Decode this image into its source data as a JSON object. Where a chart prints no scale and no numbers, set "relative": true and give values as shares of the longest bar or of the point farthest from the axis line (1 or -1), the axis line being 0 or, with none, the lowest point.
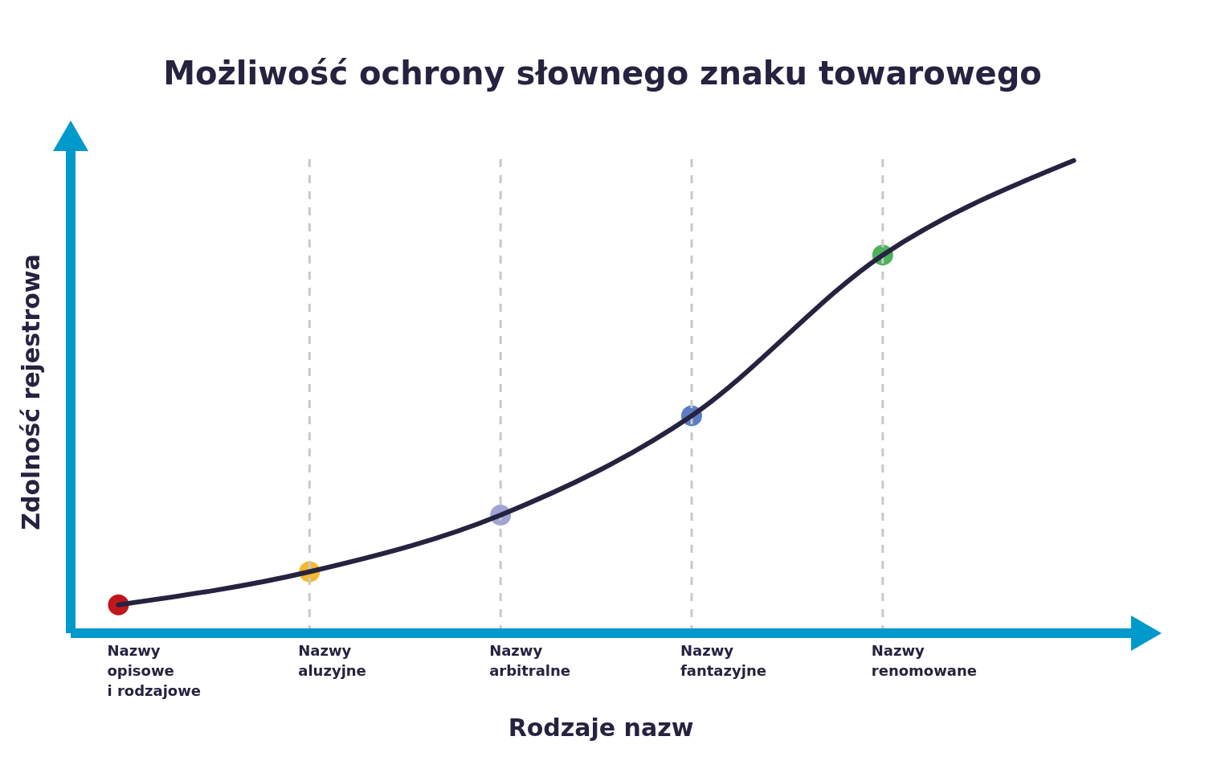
{
  "chart_data": {
    "type": "line",
    "title": "Możliwość ochrony słownego znaku towarowego",
    "xlabel": "Rodzaje nazw",
    "ylabel": "Zdolność rejestrowa",
    "relative": true,
    "categories": [
      "Nazwy\nopisowe\ni rodzajowe",
      "Nazwy\naluzyjne",
      "Nazwy\narbitralne",
      "Nazwy\nfantazyjne",
      "Nazwy\nrenomowane",
      null
    ],
    "series": [
      {
        "color": "#25233f",
        "values": [
          0.06,
          0.13,
          0.25,
          0.46,
          0.8,
          1
        ],
        "colors": [
          "#c0161c",
          "#f5b82e",
          "#a3a3d3",
          "#5b7ec4",
          "#4cb35c",
          null
        ]
      }
    ],
    "marker": "circle",
    "ref_lines": [
      {
        "axis": "x",
        "value": "Nazwy\naluzyjne",
        "color": "#c8c8c8",
        "line_style": "dashed"
      },
      {
        "axis": "x",
        "value": "Nazwy\narbitralne",
        "color": "#c8c8c8",
        "line_style": "dashed"
      },
      {
        "axis": "x",
        "value": "Nazwy\nfantazyjne",
        "color": "#c8c8c8",
        "line_style": "dashed"
      },
      {
        "axis": "x",
        "value": "Nazwy\nrenomowane",
        "color": "#c8c8c8",
        "line_style": "dashed"
      }
    ]
  }
}
